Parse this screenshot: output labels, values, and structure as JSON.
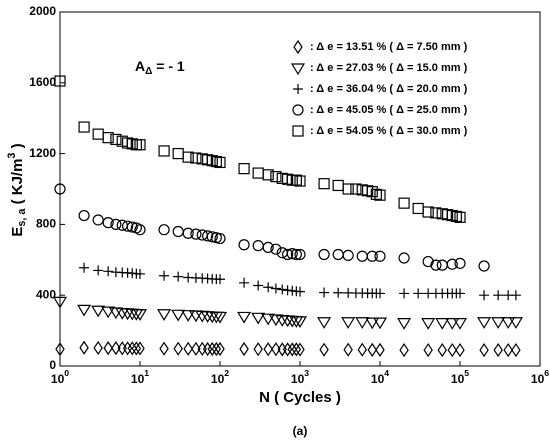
{
  "chart_data": {
    "type": "scatter",
    "x_label": "N ( Cycles )",
    "y_label": "E_{s, a} ( KJ/m^{3} )",
    "annotation": "A_{Δ} = - 1",
    "caption": "(a)",
    "log_x": true,
    "xlim": [
      1,
      1000000
    ],
    "xticks": [
      {
        "value": 1,
        "label": "10^{0}"
      },
      {
        "value": 10,
        "label": "10^{1}"
      },
      {
        "value": 100,
        "label": "10^{2}"
      },
      {
        "value": 1000,
        "label": "10^{3}"
      },
      {
        "value": 10000,
        "label": "10^{4}"
      },
      {
        "value": 100000,
        "label": "10^{5}"
      },
      {
        "value": 1000000,
        "label": "10^{6}"
      }
    ],
    "ylim": [
      0,
      2000
    ],
    "yticks": [
      0,
      400,
      800,
      1200,
      1600,
      2000
    ],
    "legend_position": "upper right",
    "series": [
      {
        "name": ": Δ e = 13.51 % ( Δ = 7.50 mm )",
        "marker": "diamond",
        "color": "#000000",
        "x": [
          1,
          2,
          3,
          4,
          5,
          6,
          7,
          8,
          9,
          10,
          20,
          30,
          40,
          50,
          60,
          70,
          80,
          90,
          100,
          200,
          300,
          400,
          500,
          600,
          700,
          800,
          900,
          1000,
          2000,
          4000,
          6000,
          8000,
          10000,
          20000,
          40000,
          60000,
          80000,
          100000,
          200000,
          300000,
          400000,
          500000
        ],
        "values": [
          95,
          103,
          102,
          101,
          101,
          100,
          100,
          100,
          99,
          99,
          98,
          98,
          97,
          97,
          97,
          96,
          96,
          96,
          96,
          96,
          95,
          95,
          95,
          94,
          94,
          94,
          94,
          93,
          92,
          92,
          92,
          91,
          91,
          90,
          90,
          90,
          90,
          90,
          90,
          90,
          90,
          90
        ]
      },
      {
        "name": ": Δ e = 27.03 % ( Δ = 15.0 mm )",
        "marker": "triangle",
        "color": "#000000",
        "x": [
          1,
          2,
          3,
          4,
          5,
          6,
          7,
          8,
          9,
          10,
          20,
          30,
          40,
          50,
          60,
          70,
          80,
          90,
          100,
          200,
          300,
          400,
          500,
          600,
          700,
          800,
          900,
          1000,
          2000,
          4000,
          6000,
          8000,
          10000,
          20000,
          40000,
          60000,
          80000,
          100000,
          200000,
          300000,
          400000,
          500000
        ],
        "values": [
          365,
          320,
          315,
          310,
          305,
          302,
          300,
          298,
          296,
          295,
          295,
          292,
          290,
          288,
          286,
          284,
          282,
          281,
          280,
          280,
          275,
          270,
          266,
          262,
          260,
          258,
          256,
          255,
          250,
          250,
          250,
          248,
          248,
          245,
          245,
          245,
          245,
          245,
          250,
          250,
          250,
          250
        ]
      },
      {
        "name": ": Δ e = 36.04 % ( Δ = 20.0 mm )",
        "marker": "plus",
        "color": "#000000",
        "x": [
          2,
          3,
          4,
          5,
          6,
          7,
          8,
          9,
          10,
          20,
          30,
          40,
          50,
          60,
          70,
          80,
          90,
          100,
          200,
          300,
          400,
          500,
          600,
          700,
          800,
          900,
          1000,
          2000,
          3000,
          4000,
          5000,
          6000,
          7000,
          8000,
          9000,
          10000,
          20000,
          30000,
          40000,
          50000,
          60000,
          70000,
          80000,
          90000,
          100000,
          200000,
          300000,
          400000,
          500000
        ],
        "values": [
          555,
          540,
          535,
          530,
          528,
          526,
          524,
          522,
          520,
          510,
          505,
          500,
          498,
          496,
          494,
          492,
          491,
          490,
          470,
          455,
          445,
          438,
          432,
          428,
          425,
          422,
          420,
          415,
          414,
          413,
          412,
          412,
          411,
          411,
          410,
          410,
          410,
          410,
          410,
          410,
          410,
          410,
          410,
          410,
          410,
          400,
          400,
          400,
          400
        ]
      },
      {
        "name": ": Δ e = 45.05 % ( Δ = 25.0 mm )",
        "marker": "circle",
        "color": "#000000",
        "x": [
          1,
          2,
          3,
          4,
          5,
          6,
          7,
          8,
          9,
          10,
          20,
          30,
          40,
          50,
          60,
          70,
          80,
          90,
          100,
          200,
          300,
          400,
          500,
          600,
          700,
          800,
          900,
          1000,
          2000,
          3000,
          4000,
          6000,
          8000,
          10000,
          20000,
          40000,
          50000,
          60000,
          80000,
          100000,
          200000
        ],
        "values": [
          1000,
          850,
          825,
          810,
          800,
          795,
          790,
          785,
          780,
          770,
          770,
          760,
          750,
          745,
          740,
          735,
          730,
          725,
          720,
          685,
          680,
          670,
          660,
          640,
          630,
          635,
          630,
          630,
          630,
          630,
          625,
          620,
          620,
          620,
          610,
          590,
          570,
          570,
          575,
          580,
          565
        ]
      },
      {
        "name": ": Δ e = 54.05 % ( Δ = 30.0 mm )",
        "marker": "square",
        "color": "#000000",
        "x": [
          1,
          2,
          3,
          4,
          5,
          6,
          7,
          8,
          9,
          10,
          20,
          30,
          40,
          50,
          60,
          70,
          80,
          90,
          100,
          200,
          300,
          400,
          500,
          600,
          700,
          800,
          900,
          1000,
          2000,
          3000,
          4000,
          5000,
          6000,
          7000,
          8000,
          9000,
          10000,
          20000,
          30000,
          40000,
          50000,
          60000,
          70000,
          80000,
          90000,
          100000
        ],
        "values": [
          1610,
          1350,
          1310,
          1290,
          1280,
          1270,
          1260,
          1255,
          1250,
          1250,
          1215,
          1200,
          1180,
          1175,
          1170,
          1165,
          1160,
          1155,
          1150,
          1115,
          1090,
          1080,
          1070,
          1060,
          1055,
          1050,
          1050,
          1045,
          1030,
          1020,
          1000,
          1000,
          995,
          990,
          985,
          970,
          965,
          920,
          890,
          870,
          865,
          860,
          855,
          850,
          845,
          840
        ]
      }
    ]
  }
}
